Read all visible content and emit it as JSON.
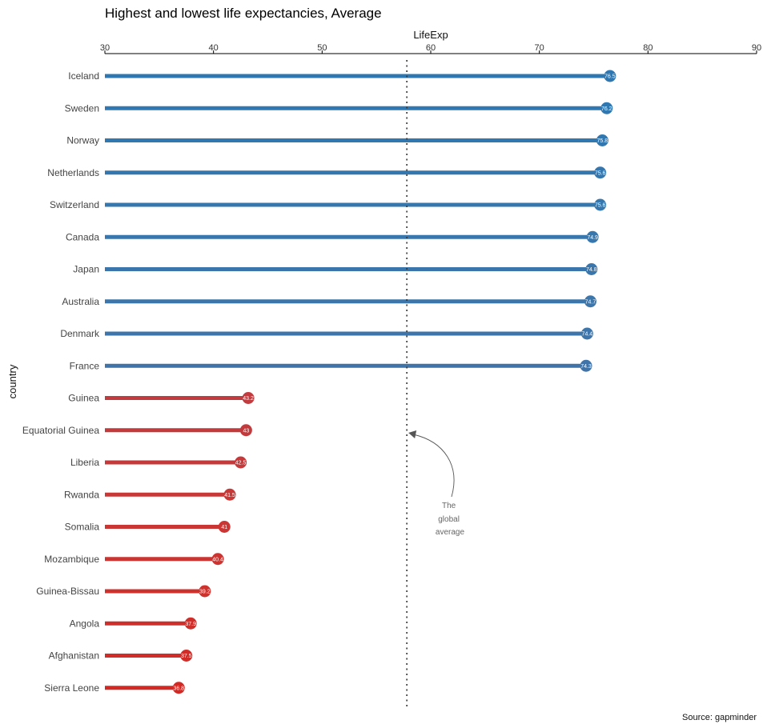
{
  "chart_data": {
    "type": "lollipop",
    "title": "Highest and lowest life expectancies, Average",
    "xlabel": "LifeExp",
    "ylabel": "country",
    "xlim": [
      30,
      90
    ],
    "x_ticks": [
      30,
      40,
      50,
      60,
      70,
      80,
      90
    ],
    "x_tick_labels": [
      "30",
      "40",
      "50",
      "60",
      "70",
      "80",
      "90"
    ],
    "x_axis_position": "top",
    "grid": false,
    "global_average": 57.8,
    "annotation": {
      "lines": [
        "The",
        "global",
        "average"
      ]
    },
    "caption": "Source: gapminder",
    "categories": [
      "Iceland",
      "Sweden",
      "Norway",
      "Netherlands",
      "Switzerland",
      "Canada",
      "Japan",
      "Australia",
      "Denmark",
      "France",
      "Guinea",
      "Equatorial Guinea",
      "Liberia",
      "Rwanda",
      "Somalia",
      "Mozambique",
      "Guinea-Bissau",
      "Angola",
      "Afghanistan",
      "Sierra Leone"
    ],
    "values": [
      76.5,
      76.2,
      75.8,
      75.6,
      75.6,
      74.9,
      74.8,
      74.7,
      74.4,
      74.3,
      43.2,
      43,
      42.5,
      41.5,
      41,
      40.4,
      39.2,
      37.9,
      37.5,
      36.8
    ],
    "value_labels": [
      "76.5",
      "76.2",
      "75.8",
      "75.6",
      "75.6",
      "74.9",
      "74.8",
      "74.7",
      "74.4",
      "74.3",
      "43.2",
      "43",
      "42.5",
      "41.5",
      "41",
      "40.4",
      "39.2",
      "37.9",
      "37.5",
      "36.8"
    ],
    "colors": [
      "#2e77b1",
      "#3078b1",
      "#3278b0",
      "#3477af",
      "#3677ae",
      "#3877ad",
      "#3a76ac",
      "#3c76ab",
      "#3e75aa",
      "#4074a9",
      "#c13b3f",
      "#c33a3c",
      "#c5393a",
      "#c73836",
      "#c93633",
      "#cb3430",
      "#cd322d",
      "#cf2f2a",
      "#d12c27",
      "#d32924"
    ],
    "legend": "none"
  }
}
